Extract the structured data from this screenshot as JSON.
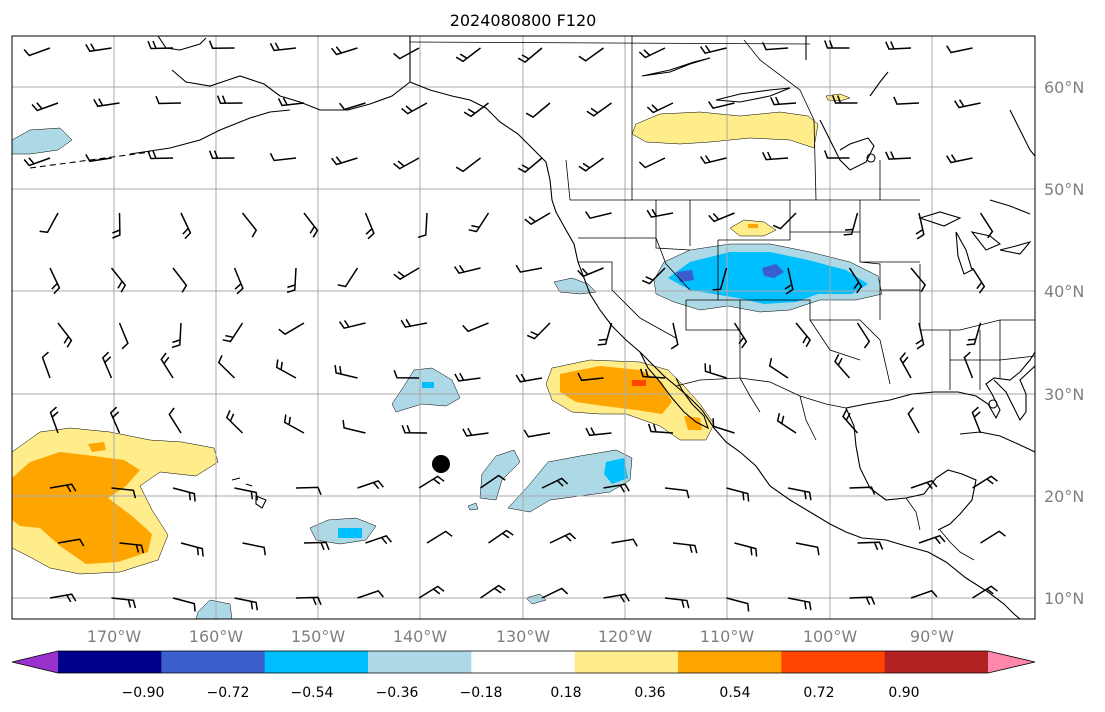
{
  "title": "2024080800 F120",
  "lat_labels": [
    "60°N",
    "50°N",
    "40°N",
    "30°N",
    "20°N",
    "10°N"
  ],
  "lon_labels": [
    "170°W",
    "160°W",
    "150°W",
    "140°W",
    "130°W",
    "120°W",
    "110°W",
    "100°W",
    "90°W"
  ],
  "colorbar": {
    "ticks": [
      "−0.90",
      "−0.72",
      "−0.54",
      "−0.36",
      "−0.18",
      "0.18",
      "0.36",
      "0.54",
      "0.72",
      "0.90"
    ],
    "colors": [
      "#9932cc",
      "#00008b",
      "#3a5fcd",
      "#00bfff",
      "#add8e6",
      "#ffffff",
      "#ffec8b",
      "#ffa500",
      "#ff4500",
      "#b22222",
      "#ff88aa"
    ]
  },
  "colors": {
    "grid": "#a9a9a9",
    "coast": "#000000",
    "positive_light": "#ffec8b",
    "positive_mid": "#ffa500",
    "positive_high": "#ff4500",
    "negative_light": "#add8e6",
    "negative_mid": "#00bfff",
    "negative_high": "#3a5fcd"
  },
  "map": {
    "projection": "plate-carree",
    "lon_range": [
      -180,
      -80
    ],
    "lat_range": [
      8,
      65
    ],
    "gridlines": true,
    "wind_barbs": true,
    "storm_marker": "filled-black-circle"
  }
}
